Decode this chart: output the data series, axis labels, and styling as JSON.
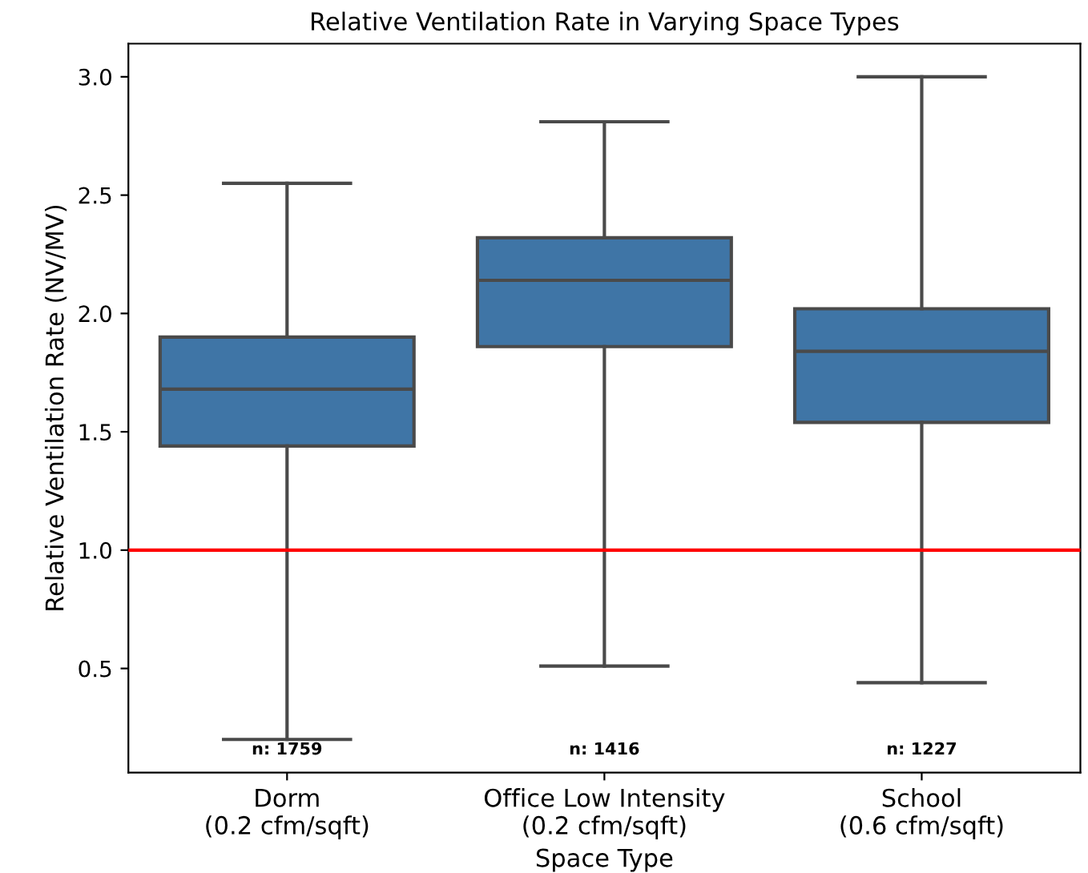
{
  "chart_data": {
    "type": "box",
    "title": "Relative Ventilation Rate in Varying Space Types",
    "xlabel": "Space Type",
    "ylabel": "Relative Ventilation Rate (NV/MV)",
    "categories": [
      "Dorm\n(0.2 cfm/sqft)",
      "Office Low Intensity\n(0.2 cfm/sqft)",
      "School\n(0.6 cfm/sqft)"
    ],
    "boxes": [
      {
        "low": 0.2,
        "q1": 1.44,
        "median": 1.68,
        "q3": 1.9,
        "high": 2.55
      },
      {
        "low": 0.51,
        "q1": 1.86,
        "median": 2.14,
        "q3": 2.32,
        "high": 2.81
      },
      {
        "low": 0.44,
        "q1": 1.54,
        "median": 1.84,
        "q3": 2.02,
        "high": 3.0
      }
    ],
    "color": "#3f75a6",
    "ylim": [
      0.06,
      3.14
    ],
    "yticks": [
      0.5,
      {
        "value": 1,
        "label": "1.0"
      },
      1.5,
      {
        "value": 2,
        "label": "2.0"
      },
      2.5,
      {
        "value": 3,
        "label": "3.0"
      }
    ],
    "ref_lines": [
      {
        "axis": "y",
        "value": 1.0,
        "color": "#ff0000"
      }
    ],
    "annotations": [
      "n: 1759",
      "n: 1416",
      "n: 1227"
    ]
  }
}
